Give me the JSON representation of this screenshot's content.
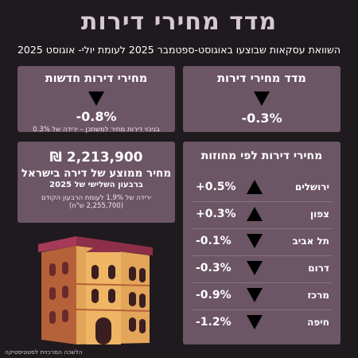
{
  "header": {
    "title": "מדד מחירי דירות",
    "subtitle": "השוואת עסקאות שבוצעו באוגוסט-ספטמבר 2025 לעומת יולי- אוגוסט 2025"
  },
  "index_card": {
    "title": "מדד מחירי דירות",
    "direction": "down",
    "value": "-0.3%"
  },
  "new_card": {
    "title": "מחירי דירות חדשות",
    "direction": "down",
    "value": "-0.8%",
    "note": "בניכוי דירות מחיר למשתכן – ירידה של 0.3%"
  },
  "avg_card": {
    "amount": "₪ 2,213,900",
    "line1": "מחיר ממוצע של דירה בישראל",
    "line2": "ברבעון השלישי של 2025",
    "note1": "ירידה של 1.9% לעומת הרבעון הקודם",
    "note2": "(2,255,700 ש\"ח)"
  },
  "districts_card": {
    "title": "מחירי דירות לפי מחוזות",
    "rows": [
      {
        "name": "ירושלים",
        "direction": "up",
        "value": "+0.5%"
      },
      {
        "name": "צפון",
        "direction": "up",
        "value": "+0.3%"
      },
      {
        "name": "תל אביב",
        "direction": "down",
        "value": "-0.1%"
      },
      {
        "name": "דרום",
        "direction": "down",
        "value": "-0.3%"
      },
      {
        "name": "מרכז",
        "direction": "down",
        "value": "-0.9%"
      },
      {
        "name": "חיפה",
        "direction": "down",
        "value": "-1.2%"
      }
    ]
  },
  "footer": {
    "source": "הלשכה המרכזית לסטטיסטיקה"
  },
  "colors": {
    "background": "#1e1a1e",
    "card": "#6c5565",
    "title": "#d6c9d0",
    "building_main": "#e3a55a",
    "building_shade": "#b5623a",
    "roof": "#8e2f4a"
  },
  "icons": {
    "down": "triangle-down-icon",
    "up": "triangle-up-icon",
    "illustration": "building-illustration"
  }
}
